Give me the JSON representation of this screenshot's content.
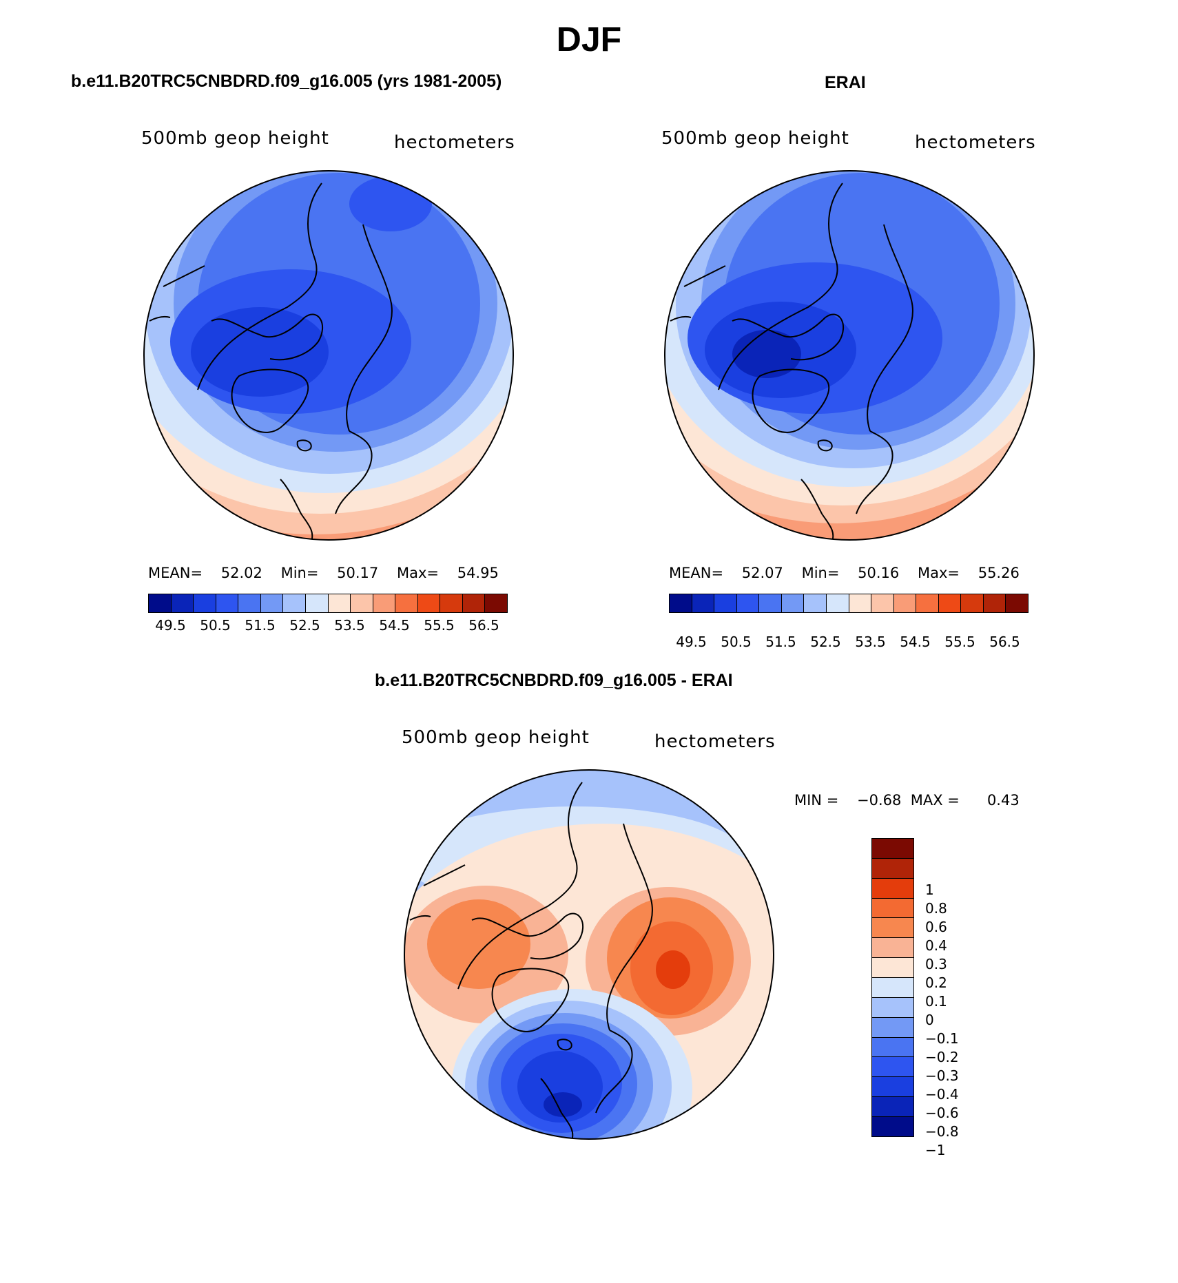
{
  "title": "DJF",
  "chart_data": [
    {
      "type": "heatmap",
      "title": "b.e11.B20TRC5CNBDRD.f09_g16.005 (yrs 1981-2005)",
      "left_label": "500mb geop height",
      "right_label": "hectometers",
      "stats": {
        "mean_label": "MEAN=",
        "mean": "52.02",
        "min_label": "Min=",
        "min": "50.17",
        "max_label": "Max=",
        "max": "54.95"
      },
      "colorbar_ticks": [
        "49.5",
        "50.5",
        "51.5",
        "52.5",
        "53.5",
        "54.5",
        "55.5",
        "56.5"
      ],
      "colorbar_levels": [
        49.5,
        50,
        50.5,
        51,
        51.5,
        52,
        52.5,
        53,
        53.5,
        54,
        54.5,
        55,
        55.5,
        56,
        56.5
      ],
      "projection": "north-polar-stereographic"
    },
    {
      "type": "heatmap",
      "title": "ERAI",
      "left_label": "500mb geop height",
      "right_label": "hectometers",
      "stats": {
        "mean_label": "MEAN=",
        "mean": "52.07",
        "min_label": "Min=",
        "min": "50.16",
        "max_label": "Max=",
        "max": "55.26"
      },
      "colorbar_ticks": [
        "49.5",
        "50.5",
        "51.5",
        "52.5",
        "53.5",
        "54.5",
        "55.5",
        "56.5"
      ],
      "colorbar_levels": [
        49.5,
        50,
        50.5,
        51,
        51.5,
        52,
        52.5,
        53,
        53.5,
        54,
        54.5,
        55,
        55.5,
        56,
        56.5
      ],
      "projection": "north-polar-stereographic"
    },
    {
      "type": "heatmap",
      "title": "b.e11.B20TRC5CNBDRD.f09_g16.005 - ERAI",
      "left_label": "500mb geop height",
      "right_label": "hectometers",
      "stats": {
        "min_label": "MIN =",
        "min": "−0.68",
        "max_label": "MAX =",
        "max": "0.43"
      },
      "colorbar_ticks": [
        "1",
        "0.8",
        "0.6",
        "0.4",
        "0.3",
        "0.2",
        "0.1",
        "0",
        "−0.1",
        "−0.2",
        "−0.3",
        "−0.4",
        "−0.6",
        "−0.8",
        "−1"
      ],
      "projection": "north-polar-stereographic"
    }
  ],
  "colors": {
    "abs_palette": [
      "#000c8a",
      "#0a24b8",
      "#1a3fe0",
      "#2e55f0",
      "#4a74f2",
      "#7399f5",
      "#a6c2fb",
      "#d6e6fb",
      "#fde6d6",
      "#fcc5aa",
      "#f99c77",
      "#f6703f",
      "#ee4a16",
      "#d63a0d",
      "#b02408",
      "#7b0a02"
    ],
    "diff_palette": [
      "#7b0a02",
      "#b02408",
      "#e43d0c",
      "#f36a32",
      "#f7874f",
      "#f9b395",
      "#fde6d6",
      "#d6e6fb",
      "#a6c2fb",
      "#7399f5",
      "#4a74f2",
      "#2e55f0",
      "#1a3fe0",
      "#0a24b8",
      "#000c8a"
    ]
  }
}
